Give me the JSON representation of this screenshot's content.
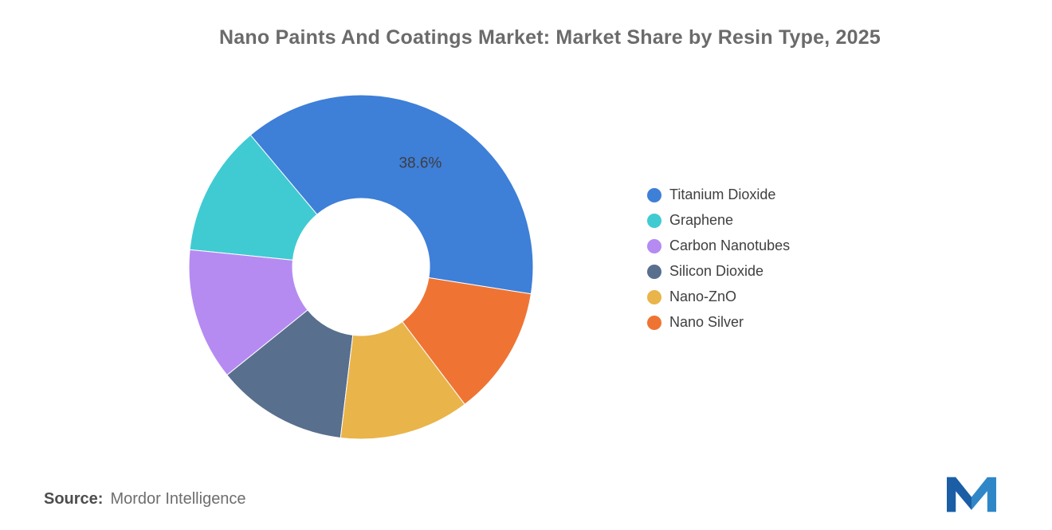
{
  "title": "Nano Paints And Coatings Market: Market Share by Resin Type, 2025",
  "source": {
    "label": "Source:",
    "value": "Mordor Intelligence"
  },
  "logo": {
    "name": "mordor-intelligence-logo",
    "color_dark": "#1B5EA6",
    "color_light": "#2F87C8"
  },
  "chart_data": {
    "type": "pie",
    "subtype": "donut",
    "title": "Nano Paints And Coatings Market: Market Share by Resin Type, 2025",
    "unit": "%",
    "start_angle_deg": 99,
    "direction": "counterclockwise",
    "inner_radius_ratio": 0.4,
    "legend_position": "right",
    "slices": [
      {
        "label": "Titanium Dioxide",
        "value": 38.6,
        "color": "#3E7FD8",
        "data_label": "38.6%"
      },
      {
        "label": "Graphene",
        "value": 12.3,
        "color": "#40CBD2",
        "data_label": ""
      },
      {
        "label": "Carbon Nanotubes",
        "value": 12.4,
        "color": "#B58BF2",
        "data_label": ""
      },
      {
        "label": "Silicon Dioxide",
        "value": 12.3,
        "color": "#586F8E",
        "data_label": ""
      },
      {
        "label": "Nano-ZnO",
        "value": 12.2,
        "color": "#E9B44A",
        "data_label": ""
      },
      {
        "label": "Nano Silver",
        "value": 12.2,
        "color": "#EF7434",
        "data_label": ""
      }
    ]
  }
}
